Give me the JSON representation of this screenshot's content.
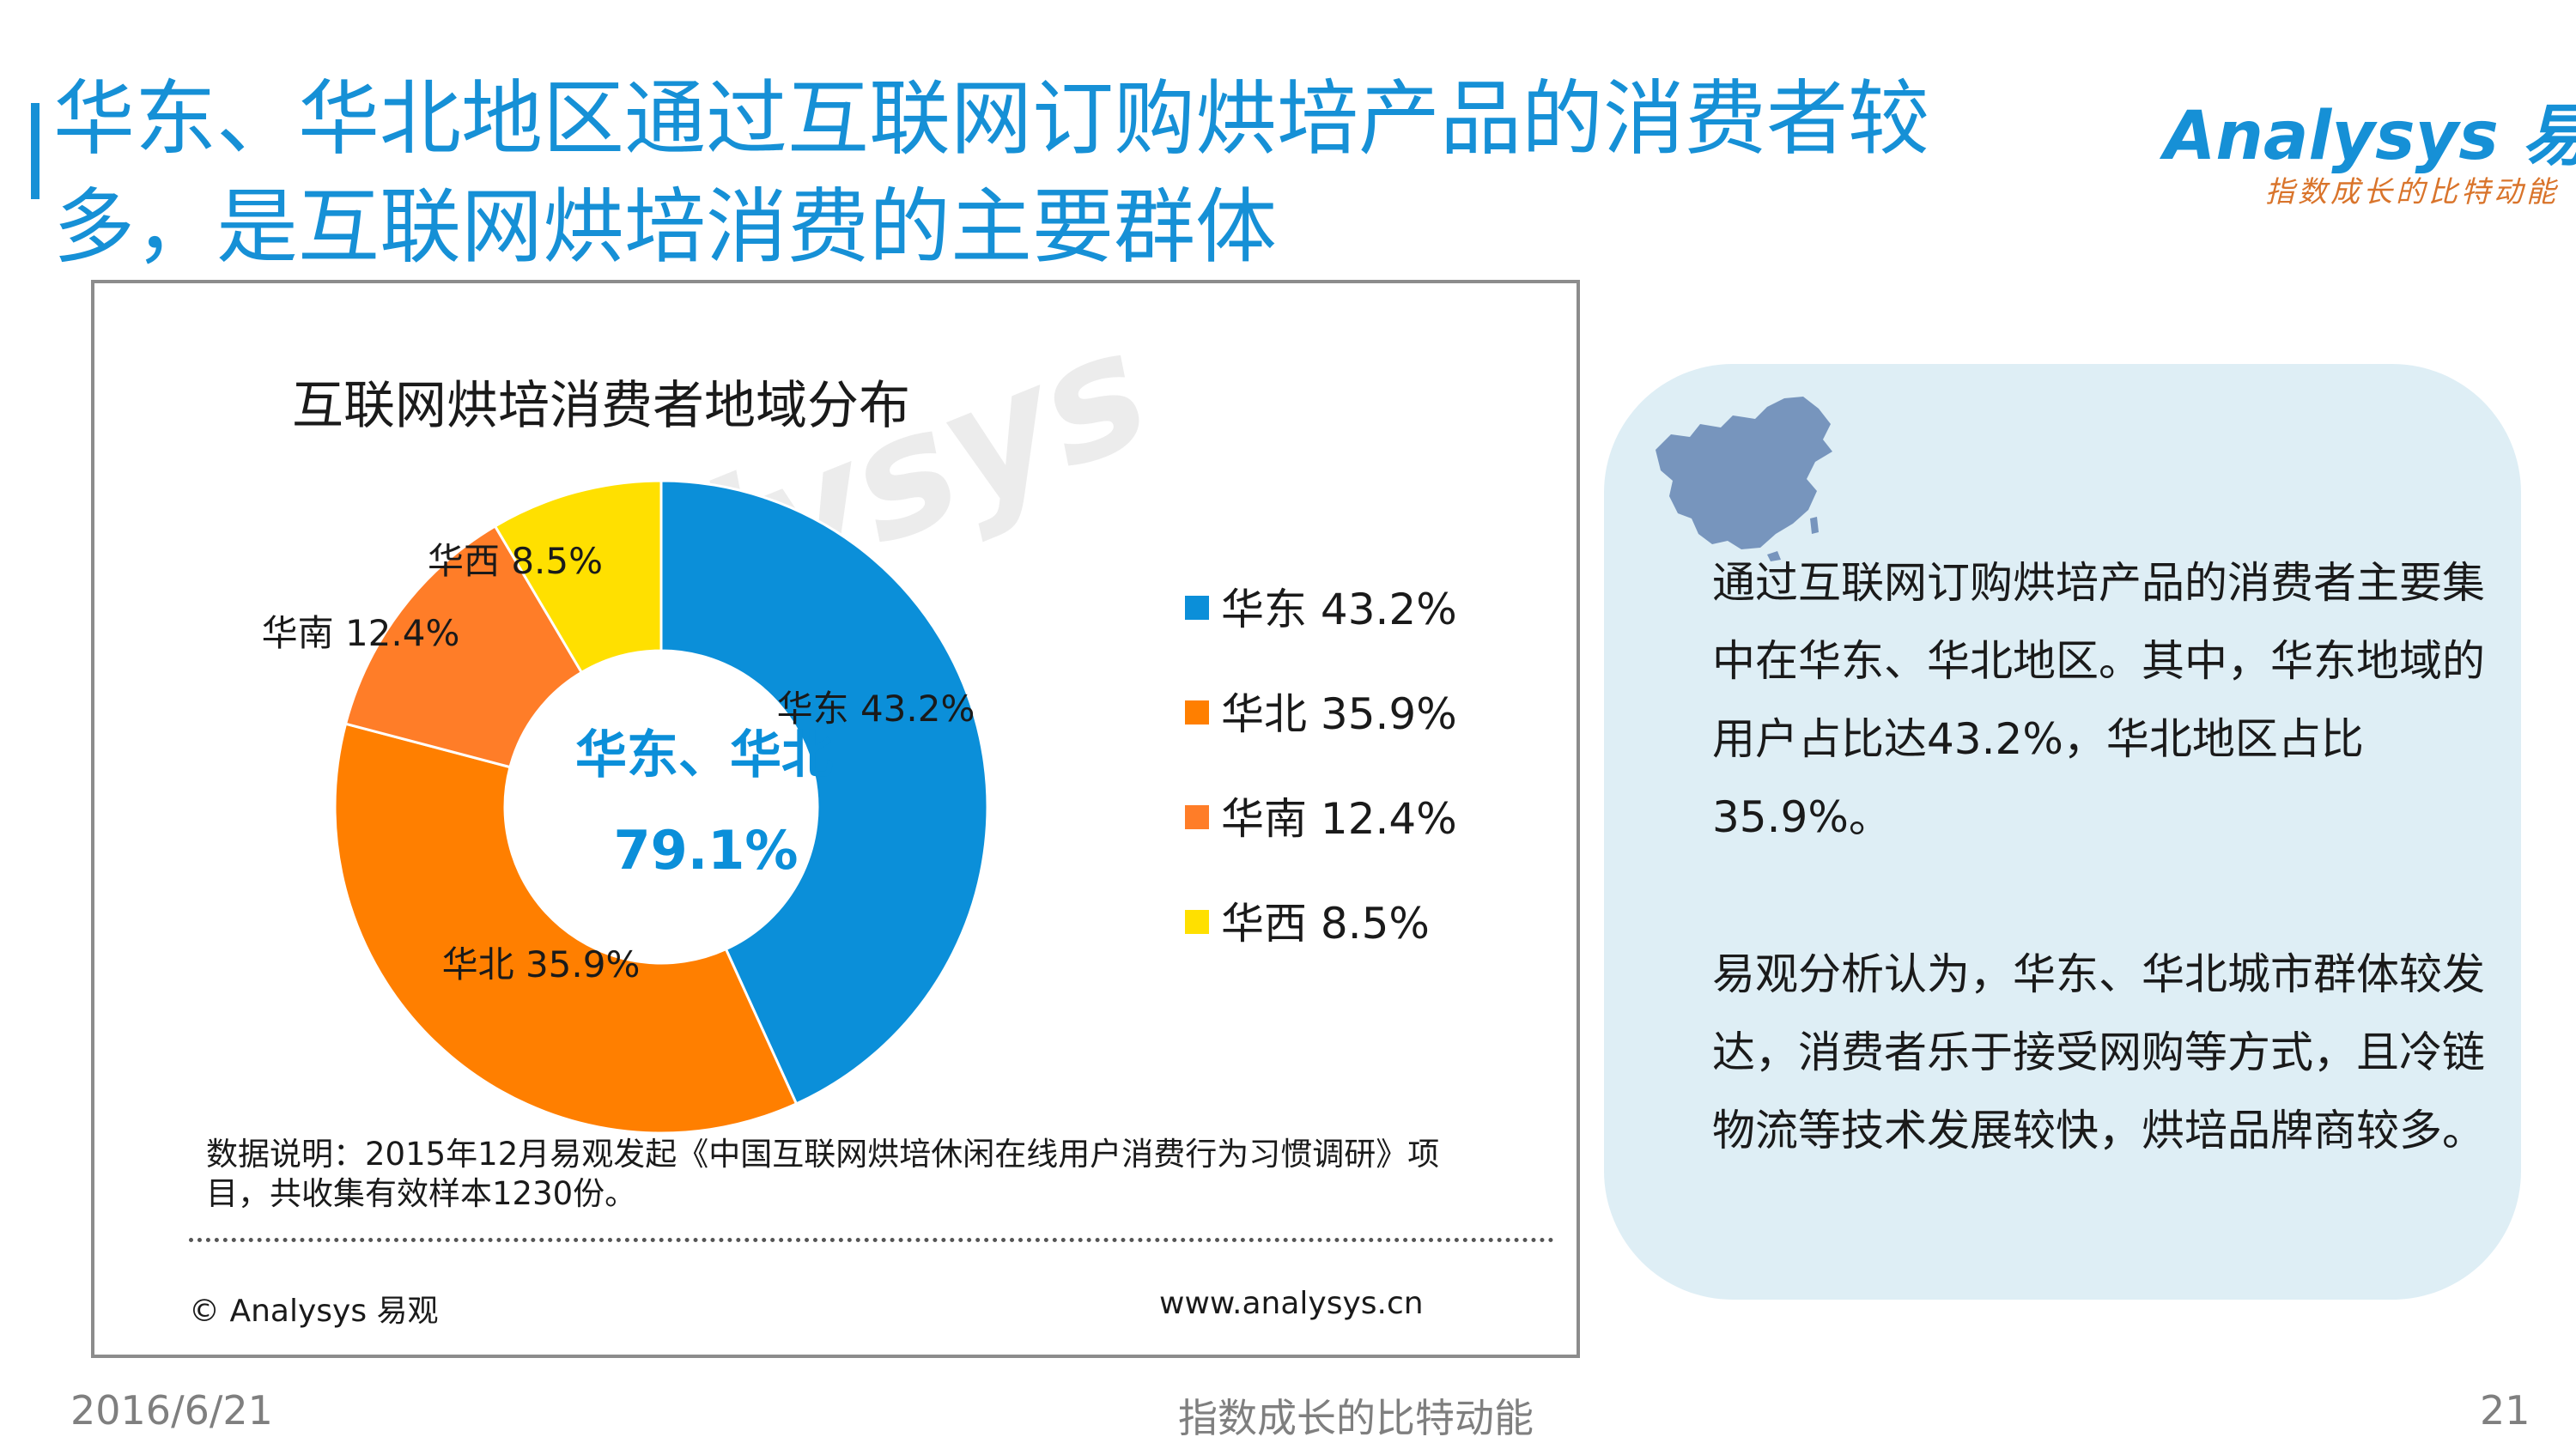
{
  "slide": {
    "title": "华东、华北地区通过互联网订购烘培产品的消费者较\n多，是互联网烘培消费的主要群体"
  },
  "brand": {
    "logo_text": "Analysys 易观",
    "tagline": "指数成长的比特动能",
    "accent_color": "#1690d6",
    "tagline_color": "#d9742b"
  },
  "watermark": "analysys",
  "chart_data": {
    "type": "pie",
    "title": "互联网烘培消费者地域分布",
    "center_label": "华东、华北",
    "center_value": "79.1%",
    "unit": "%",
    "slices": [
      {
        "label": "华东",
        "value": 43.2,
        "color": "#0b8fd9",
        "data_label": "华东 43.2%"
      },
      {
        "label": "华北",
        "value": 35.9,
        "color": "#ff7f00",
        "data_label": "华北 35.9%"
      },
      {
        "label": "华南",
        "value": 12.4,
        "color": "#ff7d28",
        "data_label": "华南 12.4%"
      },
      {
        "label": "华西",
        "value": 8.5,
        "color": "#ffe000",
        "data_label": "华西 8.5%"
      }
    ],
    "legend": [
      {
        "text": "华东 43.2%",
        "color": "#0b8fd9"
      },
      {
        "text": "华北 35.9%",
        "color": "#ff7f00"
      },
      {
        "text": "华南 12.4%",
        "color": "#ff7d28"
      },
      {
        "text": "华西 8.5%",
        "color": "#ffe000"
      }
    ],
    "legend_position": "right",
    "grid": false
  },
  "note": {
    "text": "数据说明：2015年12月易观发起《中国互联网烘培休闲在线用户消费行为习惯调研》项目，共收集有效样本1230份。"
  },
  "chart_footer": {
    "copyright": "© Analysys 易观",
    "url": "www.analysys.cn"
  },
  "info_panel": {
    "map_icon": "china-map-icon",
    "background_color": "#deeef5",
    "paragraph1": "通过互联网订购烘培产品的消费者主要集中在华东、华北地区。其中，华东地域的用户占比达43.2%，华北地区占比35.9%。",
    "paragraph2": "易观分析认为，华东、华北城市群体较发达，消费者乐于接受网购等方式，且冷链物流等技术发展较快，烘培品牌商较多。"
  },
  "footer": {
    "date": "2016/6/21",
    "tagline": "指数成长的比特动能",
    "page_number": "21"
  }
}
